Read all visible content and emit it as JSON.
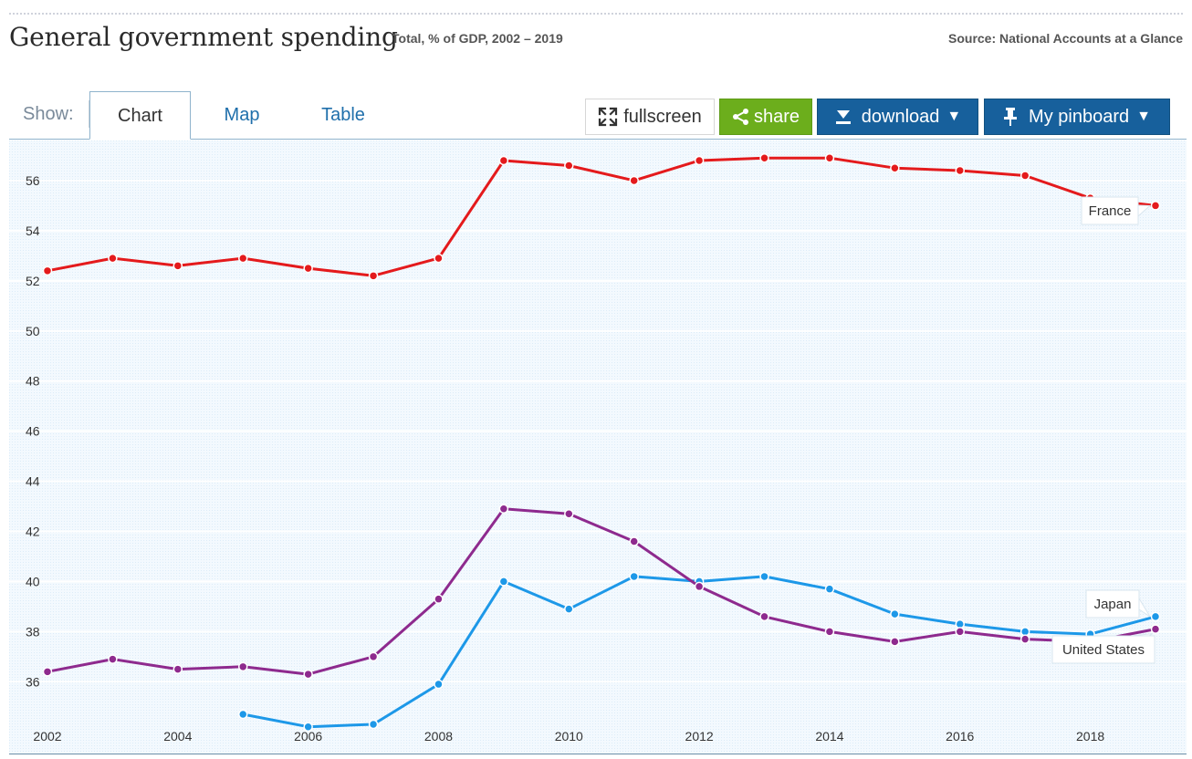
{
  "header": {
    "title": "General government spending",
    "subtitle": "Total, % of GDP, 2002 – 2019",
    "source": "Source: National Accounts at a Glance"
  },
  "toolbar": {
    "show_label": "Show:",
    "tabs": [
      {
        "label": "Chart",
        "active": true
      },
      {
        "label": "Map",
        "active": false
      },
      {
        "label": "Table",
        "active": false
      }
    ],
    "fullscreen_label": "fullscreen",
    "share_label": "share",
    "download_label": "download",
    "pinboard_label": "My pinboard",
    "icons": {
      "fullscreen": "expand-arrows-icon",
      "share": "share-icon",
      "download": "download-icon",
      "pinboard": "pushpin-icon",
      "caret": "caret-down-icon"
    }
  },
  "chart_data": {
    "type": "line",
    "x": [
      2002,
      2003,
      2004,
      2005,
      2006,
      2007,
      2008,
      2009,
      2010,
      2011,
      2012,
      2013,
      2014,
      2015,
      2016,
      2017,
      2018,
      2019
    ],
    "xticks": [
      2002,
      2004,
      2006,
      2008,
      2010,
      2012,
      2014,
      2016,
      2018
    ],
    "yticks": [
      36,
      38,
      40,
      42,
      44,
      46,
      48,
      50,
      52,
      54,
      56
    ],
    "ylim": [
      34.3,
      57.6
    ],
    "xlim": [
      2002,
      2019
    ],
    "grid": true,
    "series": [
      {
        "name": "France",
        "color": "#e41a1c",
        "values": [
          52.4,
          52.9,
          52.6,
          52.9,
          52.5,
          52.2,
          52.9,
          56.8,
          56.6,
          56.0,
          56.8,
          56.9,
          56.9,
          56.5,
          56.4,
          56.2,
          55.3,
          55.0
        ]
      },
      {
        "name": "Japan",
        "color": "#1d98e8",
        "values": [
          null,
          null,
          null,
          34.7,
          34.2,
          34.3,
          35.9,
          40.0,
          38.9,
          40.2,
          40.0,
          40.2,
          39.7,
          38.7,
          38.3,
          38.0,
          37.9,
          38.6
        ]
      },
      {
        "name": "United States",
        "color": "#8e2a8e",
        "values": [
          36.4,
          36.9,
          36.5,
          36.6,
          36.3,
          37.0,
          39.3,
          42.9,
          42.7,
          41.6,
          39.8,
          38.6,
          38.0,
          37.6,
          38.0,
          37.7,
          37.6,
          38.1
        ]
      }
    ]
  }
}
